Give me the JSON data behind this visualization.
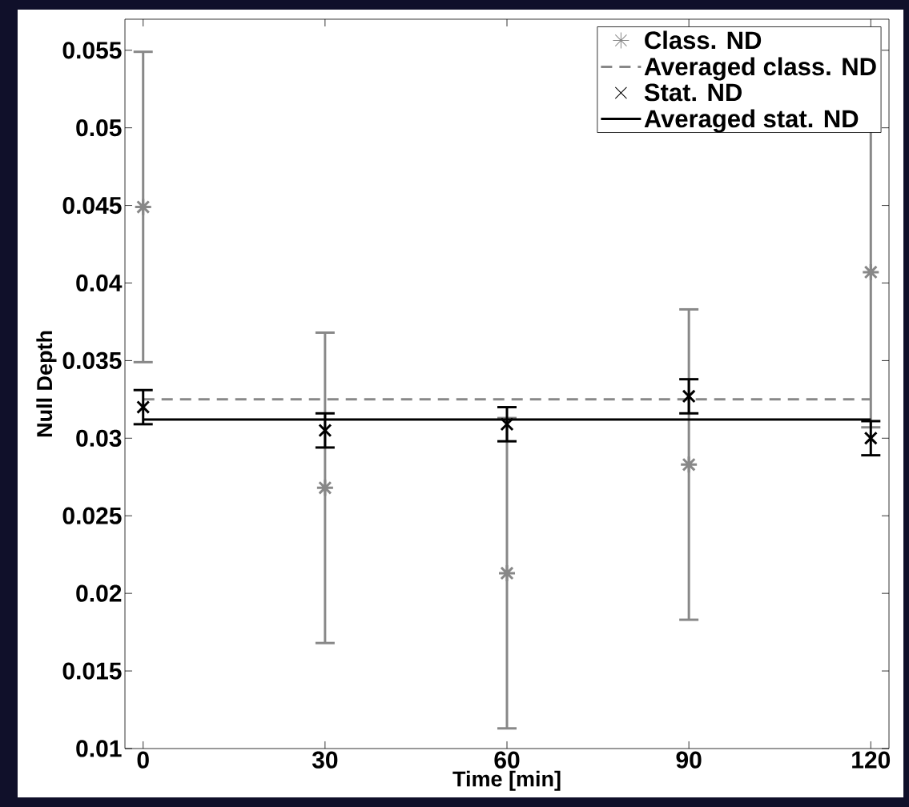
{
  "chart_data": {
    "type": "scatter",
    "xlabel": "Time [min]",
    "ylabel": "Null Depth",
    "xlim": [
      -3,
      123
    ],
    "ylim": [
      0.01,
      0.057
    ],
    "xticks": [
      0,
      30,
      60,
      90,
      120
    ],
    "yticks": [
      0.01,
      0.015,
      0.02,
      0.025,
      0.03,
      0.035,
      0.04,
      0.045,
      0.05,
      0.055
    ],
    "grid": false,
    "legend": "top right",
    "series": [
      {
        "name": "Class. ND",
        "type": "scatter",
        "color": "#888888",
        "x": [
          0,
          30,
          60,
          90,
          120
        ],
        "values": [
          0.0449,
          0.0268,
          0.0213,
          0.0283,
          0.0407
        ],
        "errors": [
          0.01,
          0.01,
          0.01,
          0.01,
          0.01
        ]
      },
      {
        "name": "Averaged class. ND",
        "type": "line",
        "line_style": "dashed",
        "marker": "none",
        "color": "#888888",
        "x": [
          0,
          120
        ],
        "values": [
          0.0325,
          0.0325
        ]
      },
      {
        "name": "Stat. ND",
        "type": "scatter",
        "marker": "cross",
        "color": "#000000",
        "x": [
          0,
          30,
          60,
          90,
          120
        ],
        "values": [
          0.032,
          0.0305,
          0.0309,
          0.0327,
          0.03
        ],
        "errors": [
          0.0011,
          0.0011,
          0.0011,
          0.0011,
          0.0011
        ]
      },
      {
        "name": "Averaged stat. ND",
        "type": "line",
        "line_style": "solid",
        "marker": "none",
        "color": "#000000",
        "x": [
          0,
          120
        ],
        "values": [
          0.0312,
          0.0312
        ]
      }
    ]
  }
}
